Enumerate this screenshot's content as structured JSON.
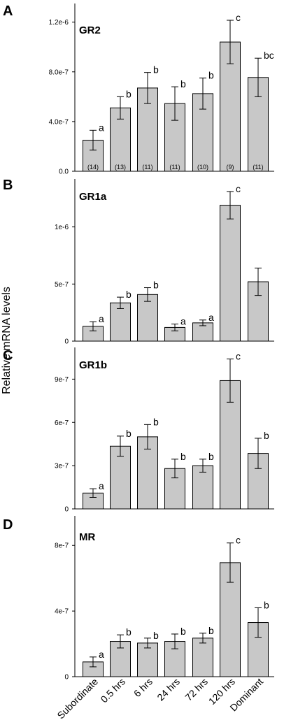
{
  "figure": {
    "ylabel": "Relative mRNA levels",
    "categories": [
      "Subordinate",
      "0.5 hrs",
      "6 hrs",
      "24 hrs",
      "72 hrs",
      "120 hrs",
      "Dominant"
    ],
    "bar_color": "#c8c8c8"
  },
  "chart_data": [
    {
      "type": "bar",
      "panel": "A",
      "title": "GR2",
      "categories": [
        "Subordinate",
        "0.5 hrs",
        "6 hrs",
        "24 hrs",
        "72 hrs",
        "120 hrs",
        "Dominant"
      ],
      "values": [
        2.5e-07,
        5.1e-07,
        6.7e-07,
        5.45e-07,
        6.25e-07,
        1.04e-06,
        7.55e-07
      ],
      "errors": [
        8e-08,
        9e-08,
        1.25e-07,
        1.35e-07,
        1.25e-07,
        1.75e-07,
        1.55e-07
      ],
      "significance": [
        "a",
        "b",
        "b",
        "b",
        "b",
        "c",
        "bc"
      ],
      "n": [
        "(14)",
        "(13)",
        "(11)",
        "(11)",
        "(10)",
        "(9)",
        "(11)"
      ],
      "ylim": [
        0,
        1.35e-06
      ],
      "yticks": [
        0,
        4e-07,
        8e-07,
        1.2e-06
      ],
      "yticklabels": [
        "0.0",
        "4.0e-7",
        "8.0e-7",
        "1.2e-6"
      ]
    },
    {
      "type": "bar",
      "panel": "B",
      "title": "GR1a",
      "categories": [
        "Subordinate",
        "0.5 hrs",
        "6 hrs",
        "24 hrs",
        "72 hrs",
        "120 hrs",
        "Dominant"
      ],
      "values": [
        1.3e-07,
        3.35e-07,
        4.08e-07,
        1.2e-07,
        1.6e-07,
        1.19e-06,
        5.2e-07
      ],
      "errors": [
        4e-08,
        5e-08,
        6e-08,
        3e-08,
        2.5e-08,
        1.2e-07,
        1.2e-07
      ],
      "significance": [
        "a",
        "b",
        "b",
        "a",
        "a",
        "c",
        ""
      ],
      "ylim": [
        0,
        1.42e-06
      ],
      "yticks": [
        0,
        5e-07,
        1e-06
      ],
      "yticklabels": [
        "0",
        "5e-7",
        "1e-6"
      ]
    },
    {
      "type": "bar",
      "panel": "C",
      "title": "GR1b",
      "categories": [
        "Subordinate",
        "0.5 hrs",
        "6 hrs",
        "24 hrs",
        "72 hrs",
        "120 hrs",
        "Dominant"
      ],
      "values": [
        1.1e-07,
        4.35e-07,
        5e-07,
        2.8e-07,
        3e-07,
        8.9e-07,
        3.85e-07
      ],
      "errors": [
        3e-08,
        7e-08,
        8.5e-08,
        6.5e-08,
        4.5e-08,
        1.5e-07,
        1.05e-07
      ],
      "significance": [
        "a",
        "b",
        "b",
        "b",
        "b",
        "c",
        "b"
      ],
      "ylim": [
        0,
        1.12e-06
      ],
      "yticks": [
        0,
        3e-07,
        6e-07,
        9e-07
      ],
      "yticklabels": [
        "0",
        "3e-7",
        "6e-7",
        "9e-7"
      ]
    },
    {
      "type": "bar",
      "panel": "D",
      "title": "MR",
      "categories": [
        "Subordinate",
        "0.5 hrs",
        "6 hrs",
        "24 hrs",
        "72 hrs",
        "120 hrs",
        "Dominant"
      ],
      "values": [
        9e-08,
        2.15e-07,
        2.05e-07,
        2.15e-07,
        2.35e-07,
        6.95e-07,
        3.3e-07
      ],
      "errors": [
        3e-08,
        4e-08,
        3e-08,
        4.5e-08,
        3e-08,
        1.2e-07,
        9e-08
      ],
      "significance": [
        "a",
        "b",
        "b",
        "b",
        "b",
        "c",
        "b"
      ],
      "ylim": [
        0,
        9.8e-07
      ],
      "yticks": [
        0,
        4e-07,
        8e-07
      ],
      "yticklabels": [
        "0",
        "4e-7",
        "8e-7"
      ]
    }
  ]
}
